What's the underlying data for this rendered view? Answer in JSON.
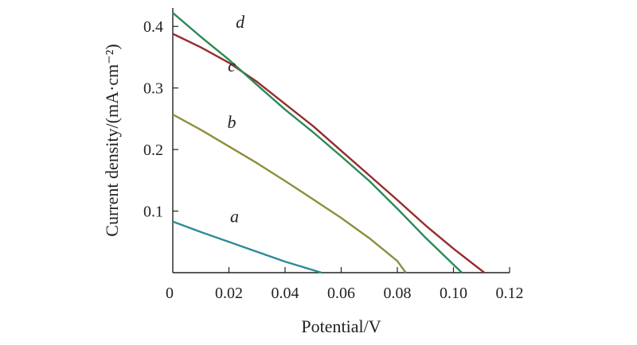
{
  "chart_data": {
    "type": "line",
    "xlabel": "Potential/V",
    "ylabel": "Current density/(mA·cm⁻²)",
    "xlim": [
      0,
      0.12
    ],
    "ylim": [
      0,
      0.43
    ],
    "x_ticks": [
      "0.02",
      "0.04",
      "0.06",
      "0.08",
      "0.10",
      "0.12"
    ],
    "x_tick_values": [
      0.02,
      0.04,
      0.06,
      0.08,
      0.1,
      0.12
    ],
    "y_ticks": [
      "0.1",
      "0.2",
      "0.3",
      "0.4"
    ],
    "y_tick_values": [
      0.1,
      0.2,
      0.3,
      0.4
    ],
    "origin_label": "0",
    "grid": false,
    "legend": "none",
    "series": [
      {
        "name": "a",
        "color": "#2e8a9a",
        "label_at": {
          "x": 0.022,
          "y": 0.082
        },
        "x": [
          0,
          0.01,
          0.02,
          0.03,
          0.04,
          0.053
        ],
        "y": [
          0.083,
          0.066,
          0.05,
          0.034,
          0.018,
          0.0
        ]
      },
      {
        "name": "b",
        "color": "#8e8e3e",
        "label_at": {
          "x": 0.021,
          "y": 0.235
        },
        "x": [
          0,
          0.01,
          0.02,
          0.03,
          0.04,
          0.05,
          0.06,
          0.07,
          0.08,
          0.083
        ],
        "y": [
          0.257,
          0.232,
          0.205,
          0.178,
          0.149,
          0.119,
          0.089,
          0.056,
          0.019,
          0.0
        ]
      },
      {
        "name": "c",
        "color": "#962c2c",
        "label_at": {
          "x": 0.021,
          "y": 0.327
        },
        "x": [
          0,
          0.01,
          0.02,
          0.03,
          0.04,
          0.05,
          0.06,
          0.07,
          0.08,
          0.09,
          0.1,
          0.111
        ],
        "y": [
          0.388,
          0.366,
          0.341,
          0.31,
          0.274,
          0.238,
          0.198,
          0.158,
          0.118,
          0.077,
          0.039,
          0.0
        ]
      },
      {
        "name": "d",
        "color": "#2a8a55",
        "label_at": {
          "x": 0.024,
          "y": 0.398
        },
        "x": [
          0,
          0.01,
          0.02,
          0.03,
          0.04,
          0.05,
          0.06,
          0.07,
          0.08,
          0.09,
          0.1,
          0.103
        ],
        "y": [
          0.422,
          0.383,
          0.346,
          0.305,
          0.265,
          0.228,
          0.189,
          0.149,
          0.104,
          0.057,
          0.013,
          0.0
        ]
      }
    ]
  }
}
